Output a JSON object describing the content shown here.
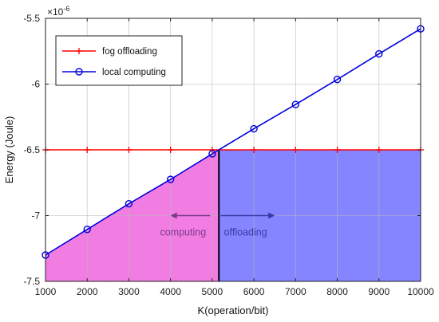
{
  "chart_data": {
    "type": "line",
    "xlabel": "K(operation/bit)",
    "ylabel": "Energy (Joule)",
    "y_exponent_label": "×10",
    "y_exponent_power": "-6",
    "xlim": [
      1000,
      10000
    ],
    "ylim": [
      -7.5,
      -5.5
    ],
    "x_ticks": [
      1000,
      2000,
      3000,
      4000,
      5000,
      6000,
      7000,
      8000,
      9000,
      10000
    ],
    "y_ticks": [
      -7.5,
      -7,
      -6.5,
      -6,
      -5.5
    ],
    "x_tick_labels": [
      "1000",
      "2000",
      "3000",
      "4000",
      "5000",
      "6000",
      "7000",
      "8000",
      "9000",
      "10000"
    ],
    "y_tick_labels": [
      "-7.5",
      "-7",
      "-6.5",
      "-6",
      "-5.5"
    ],
    "grid": true,
    "legend_position": "top-left",
    "series": [
      {
        "name": "fog offloading",
        "color": "#ff0000",
        "marker": "plus",
        "x": [
          1000,
          2000,
          3000,
          4000,
          5000,
          6000,
          7000,
          8000,
          9000,
          10000
        ],
        "y": [
          -6.5,
          -6.5,
          -6.5,
          -6.5,
          -6.5,
          -6.5,
          -6.5,
          -6.5,
          -6.5,
          -6.5
        ]
      },
      {
        "name": "local computing",
        "color": "#0000dd",
        "marker": "circle",
        "x": [
          1000,
          2000,
          3000,
          4000,
          5000,
          6000,
          7000,
          8000,
          9000,
          10000
        ],
        "y": [
          -7.3,
          -7.105,
          -6.91,
          -6.725,
          -6.53,
          -6.34,
          -6.155,
          -5.965,
          -5.77,
          -5.58
        ]
      }
    ],
    "regions": [
      {
        "label": "computing",
        "color": "#ee66dd",
        "x_from": 1000,
        "x_to": 5160
      },
      {
        "label": "offloading",
        "color": "#6666ff",
        "x_from": 5160,
        "x_to": 10000,
        "y_top": -6.5
      }
    ],
    "divider_x": 5160,
    "annotations": [
      {
        "text": "computing",
        "color": "#7a3a8a",
        "arrow_x": [
          4950,
          4000
        ],
        "arrow_y": -7.0,
        "text_x": 4300,
        "text_y": -7.15
      },
      {
        "text": "offloading",
        "color": "#3a3aa8",
        "arrow_x": [
          5200,
          6500
        ],
        "arrow_y": -7.0,
        "text_x": 5800,
        "text_y": -7.15
      }
    ]
  }
}
